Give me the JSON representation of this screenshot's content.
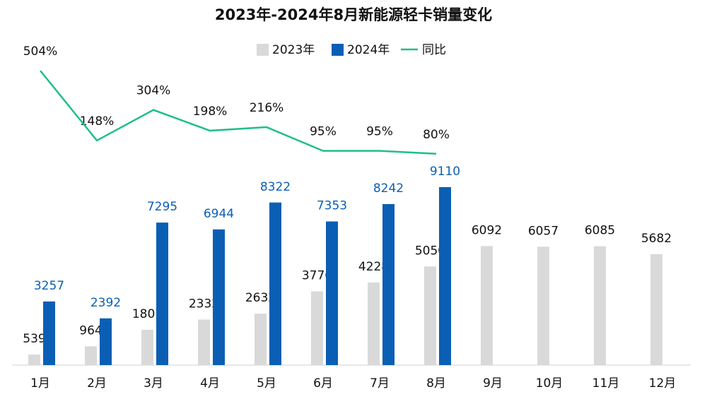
{
  "chart_data": {
    "type": "bar-line",
    "title": "2023年-2024年8月新能源轻卡销量变化",
    "categories": [
      "1月",
      "2月",
      "3月",
      "4月",
      "5月",
      "6月",
      "7月",
      "8月",
      "9月",
      "10月",
      "11月",
      "12月"
    ],
    "series": [
      {
        "name": "2023年",
        "type": "bar",
        "color": "#d9d9d9",
        "label_color": "#111111",
        "values": [
          539,
          964,
          1807,
          2332,
          2632,
          3776,
          4228,
          5050,
          6092,
          6057,
          6085,
          5682
        ]
      },
      {
        "name": "2024年",
        "type": "bar",
        "color": "#0a5fb4",
        "label_color": "#0a5fb4",
        "values": [
          3257,
          2392,
          7295,
          6944,
          8322,
          7353,
          8242,
          9110,
          null,
          null,
          null,
          null
        ]
      },
      {
        "name": "同比",
        "type": "line",
        "axis": "y2",
        "color": "#1fbf8a",
        "label_color": "#111111",
        "values": [
          504,
          148,
          304,
          198,
          216,
          95,
          95,
          80,
          null,
          null,
          null,
          null
        ],
        "value_labels": [
          "504%",
          "148%",
          "304%",
          "198%",
          "216%",
          "95%",
          "95%",
          "80%",
          null,
          null,
          null,
          null
        ]
      }
    ],
    "ylim": [
      0,
      18000
    ],
    "y2lim": [
      0,
      800
    ]
  }
}
